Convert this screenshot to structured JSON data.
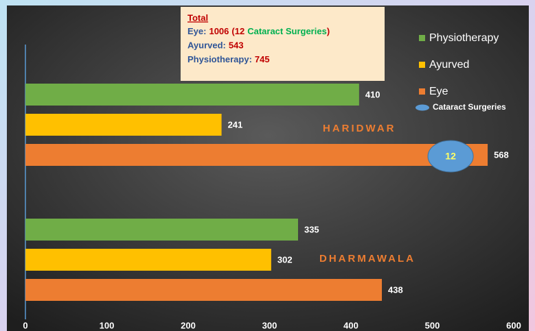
{
  "chart_data": {
    "type": "bar",
    "orientation": "horizontal",
    "categories": [
      "HARIDWAR",
      "DHARMAWALA"
    ],
    "series": [
      {
        "name": "Physiotherapy",
        "color": "#70ad47",
        "values": [
          410,
          335
        ]
      },
      {
        "name": "Ayurved",
        "color": "#ffc000",
        "values": [
          241,
          302
        ]
      },
      {
        "name": "Eye",
        "color": "#ed7d31",
        "values": [
          568,
          438
        ]
      }
    ],
    "cataract": {
      "name": "Cataract Surgeries",
      "color": "#5b9bd5",
      "values": [
        12,
        null
      ]
    },
    "xlim": [
      0,
      600
    ],
    "xticks": [
      0,
      100,
      200,
      300,
      400,
      500,
      600
    ],
    "annotation": {
      "title": "Total",
      "lines": [
        {
          "label": "Eye:",
          "value": 1006,
          "note_open": "(",
          "note_count": 12,
          "note_text": "Cataract Surgeries",
          "note_close": ")"
        },
        {
          "label": "Ayurved:",
          "value": 543
        },
        {
          "label": "Physiotherapy:",
          "value": 745
        }
      ]
    },
    "legend": "upper right"
  }
}
